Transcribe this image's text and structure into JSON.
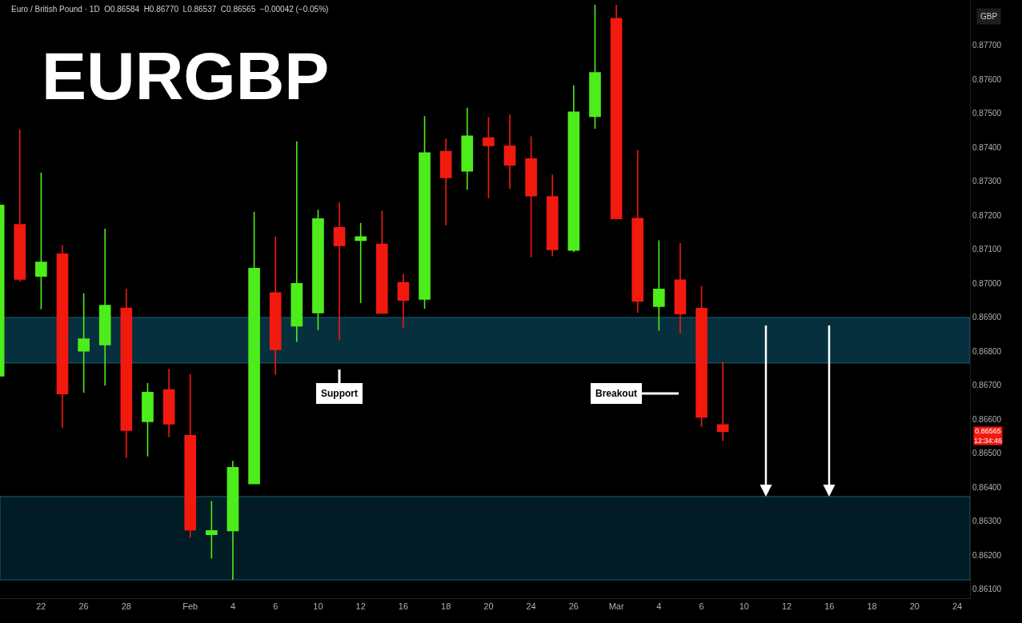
{
  "chart_data": {
    "type": "candlestick",
    "title": "EURGBP",
    "subtitle": "Euro / British Pound · 1D  O0.86584  H0.86770  L0.86537  C0.86565  −0.00042 (−0.05%)",
    "categories": [
      null,
      null,
      "22",
      null,
      "26",
      null,
      "28",
      null,
      null,
      "Feb",
      null,
      "4",
      null,
      "6",
      null,
      "10",
      null,
      "12",
      null,
      "16",
      null,
      "18",
      null,
      "20",
      null,
      "24",
      null,
      "26",
      null,
      "Mar",
      null,
      "4",
      null,
      "6",
      null,
      "10",
      null,
      "12",
      null,
      "16",
      null,
      "18",
      null,
      "20",
      null,
      "24"
    ],
    "ohlc": [
      [
        0.86728,
        0.8723,
        0.86728,
        0.8723
      ],
      [
        0.87173,
        0.87453,
        0.87006,
        0.87013
      ],
      [
        0.87022,
        0.87326,
        0.86924,
        0.87062
      ],
      [
        0.87086,
        0.87112,
        0.86575,
        0.86676
      ],
      [
        0.86802,
        0.86971,
        0.86679,
        0.86836
      ],
      [
        0.8682,
        0.87161,
        0.867,
        0.86935
      ],
      [
        0.86927,
        0.86984,
        0.86487,
        0.86568
      ],
      [
        0.86594,
        0.86707,
        0.86491,
        0.86679
      ],
      [
        0.86687,
        0.86749,
        0.86548,
        0.86587
      ],
      [
        0.86552,
        0.86734,
        0.86252,
        0.86275
      ],
      [
        0.86262,
        0.8636,
        0.86191,
        0.86272
      ],
      [
        0.86273,
        0.86478,
        0.86128,
        0.86458
      ],
      [
        0.86411,
        0.87211,
        0.86411,
        0.87044
      ],
      [
        0.86972,
        0.87138,
        0.86731,
        0.86806
      ],
      [
        0.86875,
        0.87418,
        0.86828,
        0.86999
      ],
      [
        0.86914,
        0.87217,
        0.86863,
        0.8719
      ],
      [
        0.87164,
        0.87239,
        0.86832,
        0.87112
      ],
      [
        0.87127,
        0.87178,
        0.86942,
        0.87137
      ],
      [
        0.87115,
        0.87214,
        0.86913,
        0.86913
      ],
      [
        0.87002,
        0.87028,
        0.8687,
        0.86951
      ],
      [
        0.86954,
        0.87492,
        0.86926,
        0.87384
      ],
      [
        0.87388,
        0.87426,
        0.87171,
        0.87312
      ],
      [
        0.87331,
        0.87517,
        0.87276,
        0.87433
      ],
      [
        0.87428,
        0.8749,
        0.87251,
        0.87406
      ],
      [
        0.87404,
        0.87497,
        0.87278,
        0.87349
      ],
      [
        0.87366,
        0.87433,
        0.87077,
        0.87258
      ],
      [
        0.87255,
        0.8732,
        0.8708,
        0.871
      ],
      [
        0.87098,
        0.87583,
        0.87092,
        0.87504
      ],
      [
        0.87492,
        0.8782,
        0.87455,
        0.8762
      ],
      [
        0.87779,
        0.8782,
        0.87191,
        0.87191
      ],
      [
        0.87191,
        0.87393,
        0.86914,
        0.86948
      ],
      [
        0.86933,
        0.87127,
        0.86861,
        0.86983
      ],
      [
        0.8701,
        0.87119,
        0.86852,
        0.86911
      ],
      [
        0.86926,
        0.86992,
        0.86578,
        0.86607
      ],
      [
        0.86584,
        0.8677,
        0.86537,
        0.86565
      ],
      null,
      null,
      null,
      null,
      null,
      null,
      null,
      null,
      null,
      null,
      null
    ],
    "colors": [
      "#4ded1c",
      "#f2190f",
      "#4ded1c",
      "#f2190f",
      "#4ded1c",
      "#4ded1c",
      "#f2190f",
      "#4ded1c",
      "#f2190f",
      "#f2190f",
      "#4ded1c",
      "#4ded1c",
      "#4ded1c",
      "#f2190f",
      "#4ded1c",
      "#4ded1c",
      "#f2190f",
      "#4ded1c",
      "#f2190f",
      "#f2190f",
      "#4ded1c",
      "#f2190f",
      "#4ded1c",
      "#f2190f",
      "#f2190f",
      "#f2190f",
      "#f2190f",
      "#4ded1c",
      "#4ded1c",
      "#f2190f",
      "#f2190f",
      "#4ded1c",
      "#f2190f",
      "#f2190f",
      "#f2190f",
      null,
      null,
      null,
      null,
      null,
      null,
      null,
      null,
      null,
      null,
      null
    ],
    "ylim": [
      0.86074,
      0.87834
    ],
    "yticks": [
      {
        "value": 0.861,
        "label": "0.86100"
      },
      {
        "value": 0.862,
        "label": "0.86200"
      },
      {
        "value": 0.863,
        "label": "0.86300"
      },
      {
        "value": 0.864,
        "label": "0.86400"
      },
      {
        "value": 0.865,
        "label": "0.86500"
      },
      {
        "value": 0.866,
        "label": "0.86600"
      },
      {
        "value": 0.867,
        "label": "0.86700"
      },
      {
        "value": 0.868,
        "label": "0.86800"
      },
      {
        "value": 0.869,
        "label": "0.86900"
      },
      {
        "value": 0.87,
        "label": "0.87000"
      },
      {
        "value": 0.871,
        "label": "0.87100"
      },
      {
        "value": 0.872,
        "label": "0.87200"
      },
      {
        "value": 0.873,
        "label": "0.87300"
      },
      {
        "value": 0.874,
        "label": "0.87400"
      },
      {
        "value": 0.875,
        "label": "0.87500"
      },
      {
        "value": 0.876,
        "label": "0.87600"
      },
      {
        "value": 0.877,
        "label": "0.87700"
      }
    ],
    "bands": [
      {
        "axis": "y",
        "from": 0.86766,
        "to": 0.869,
        "color": "#0a5068"
      },
      {
        "axis": "y",
        "from": 0.86128,
        "to": 0.86373,
        "color": "#03303c"
      }
    ],
    "annotations": [
      "Support",
      "Breakout",
      "0.86565\n12:34:46",
      "GBP"
    ]
  }
}
